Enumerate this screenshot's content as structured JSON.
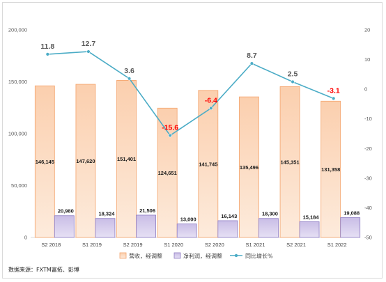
{
  "chart_data": {
    "type": "bar",
    "categories": [
      "S2 2018",
      "S1 2019",
      "S2 2019",
      "S1 2020",
      "S2 2020",
      "S1 2021",
      "S2 2021",
      "S1 2022"
    ],
    "series": [
      {
        "name": "营收，经调整",
        "type": "bar",
        "axis": "left",
        "values": [
          146145,
          147620,
          151401,
          124651,
          141745,
          135496,
          145351,
          131358
        ],
        "labels": [
          "146,145",
          "147,620",
          "151,401",
          "124,651",
          "141,745",
          "135,496",
          "145,351",
          "131,358"
        ],
        "color": "#f9b98a"
      },
      {
        "name": "净利润，经调整",
        "type": "bar",
        "axis": "left",
        "values": [
          20980,
          18324,
          21506,
          13000,
          16143,
          18300,
          15184,
          19088
        ],
        "labels": [
          "20,980",
          "18,324",
          "21,506",
          "13,000",
          "16,143",
          "18,300",
          "15,184",
          "19,088"
        ],
        "color": "#b4a7d6"
      },
      {
        "name": "同比增长%",
        "type": "line",
        "axis": "right",
        "values": [
          11.8,
          12.7,
          3.6,
          -15.6,
          -6.4,
          8.7,
          2.5,
          -3.1
        ],
        "labels": [
          "11.8",
          "12.7",
          "3.6",
          "-15.6",
          "-6.4",
          "8.7",
          "2.5",
          "-3.1"
        ],
        "color": "#4bacc6"
      }
    ],
    "left_axis": {
      "min": 0,
      "max": 200000,
      "ticks": [
        0,
        50000,
        100000,
        150000,
        200000
      ],
      "tick_labels": [
        "0",
        "50,000",
        "100,000",
        "150,000",
        "200,000"
      ]
    },
    "right_axis": {
      "min": -50,
      "max": 20,
      "ticks": [
        -50,
        -40,
        -30,
        -20,
        -10,
        0,
        10,
        20
      ],
      "tick_labels": [
        "-50",
        "-40",
        "-30",
        "-20",
        "-10",
        "0",
        "10",
        "20"
      ]
    },
    "colors": {
      "negative_label": "#ff0000",
      "positive_label": "#595959"
    },
    "legend_position": "bottom",
    "grid": false
  },
  "source_note": "数据来源：FXTM富拓、彭博"
}
